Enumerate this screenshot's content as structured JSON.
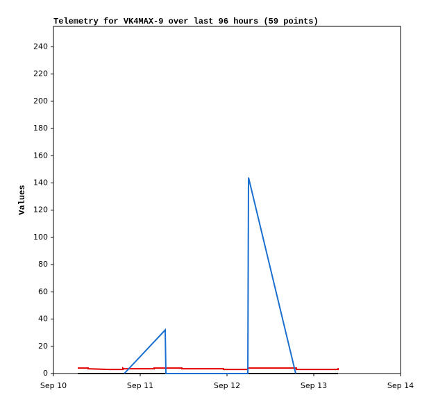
{
  "chart_data": {
    "type": "line",
    "title": "Telemetry for VK4MAX-9 over last 96 hours (59 points)",
    "y_label": "Values",
    "xlim": [
      10,
      14
    ],
    "xticks": [
      {
        "value": 10,
        "label": "Sep 10"
      },
      {
        "value": 11,
        "label": "Sep 11"
      },
      {
        "value": 12,
        "label": "Sep 12"
      },
      {
        "value": 13,
        "label": "Sep 13"
      },
      {
        "value": 14,
        "label": "Sep 14"
      }
    ],
    "ylim": [
      0,
      255
    ],
    "yticks": [
      0,
      20,
      40,
      60,
      80,
      100,
      120,
      140,
      160,
      180,
      200,
      220,
      240
    ],
    "series": [
      {
        "color": "#000000",
        "x": [
          10.28,
          13.28
        ],
        "values": [
          0,
          0
        ]
      },
      {
        "color": "#e00000",
        "x": [
          10.28,
          10.4,
          10.4,
          10.64,
          10.8,
          10.8,
          10.81,
          11.16,
          11.16,
          11.48,
          11.48,
          11.96,
          11.96,
          12.24,
          12.24,
          12.8,
          12.8,
          13.28,
          13.28
        ],
        "values": [
          4,
          4,
          3.5,
          3,
          3,
          4,
          3.5,
          3.5,
          4,
          4,
          3.5,
          3.5,
          3,
          3,
          4,
          4,
          3,
          3,
          4
        ]
      },
      {
        "color": "#1a6fd0",
        "x": [
          10.816,
          11.288,
          11.296,
          12.24,
          12.248,
          12.792
        ],
        "values": [
          0,
          32,
          0,
          0,
          144,
          0
        ]
      }
    ]
  }
}
